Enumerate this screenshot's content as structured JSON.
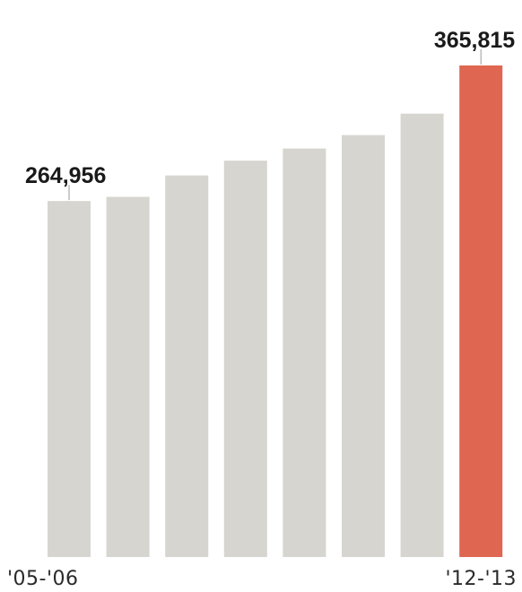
{
  "chart_data": {
    "type": "bar",
    "categories": [
      "'05-'06",
      "",
      "",
      "",
      "",
      "",
      "",
      "'12-'13"
    ],
    "values": [
      264956,
      268000,
      284000,
      295000,
      304000,
      314000,
      330000,
      365815
    ],
    "data_labels": [
      {
        "index": 0,
        "text": "264,956"
      },
      {
        "index": 7,
        "text": "365,815"
      }
    ],
    "x_tick_labels": [
      {
        "index": 0,
        "text": "'05-'06"
      },
      {
        "index": 7,
        "text": "'12-'13"
      }
    ],
    "title": "",
    "xlabel": "",
    "ylabel": "",
    "ylim": [
      0,
      365815
    ],
    "grid": false,
    "legend": "none",
    "colors": {
      "bar": "#d6d5d0",
      "highlight": "#df6650",
      "leader_line": "#999999"
    },
    "highlight_index": 7
  }
}
